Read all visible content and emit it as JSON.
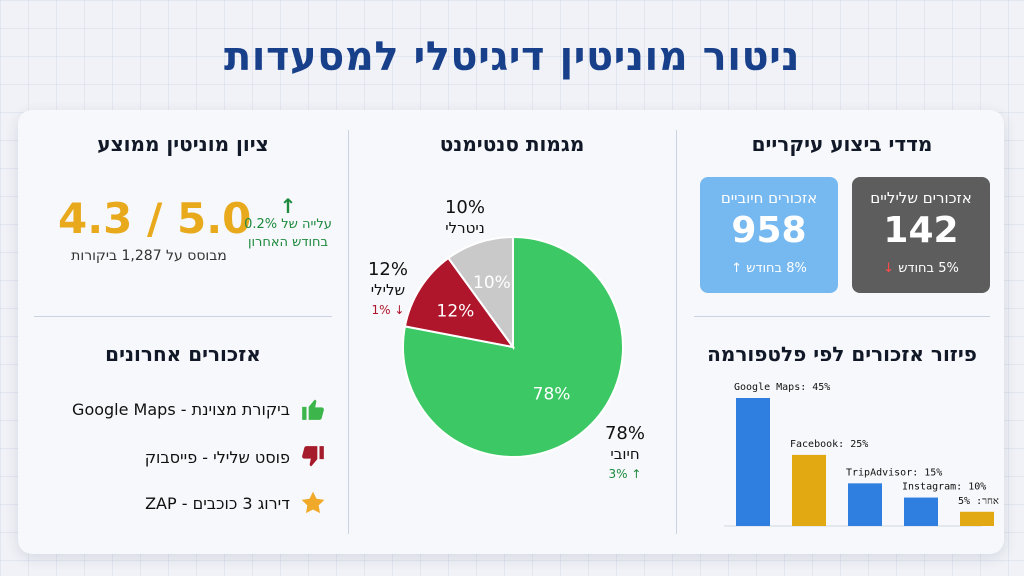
{
  "title": "ניטור מוניטין דיגיטלי למסעדות",
  "kpi": {
    "section_title": "מדדי ביצוע עיקריים",
    "negative": {
      "label": "אזכורים שליליים",
      "value": "142",
      "change": "5% בחודש",
      "color": "#5d5d5d"
    },
    "positive": {
      "label": "אזכורים חיוביים",
      "value": "958",
      "change": "8% בחודש",
      "color": "#76b8f0"
    }
  },
  "sentiment": {
    "section_title": "מגמות סנטימנט",
    "slices": [
      {
        "name": "חיובי",
        "percent": 78,
        "label": "78%",
        "change": "↑ 3%",
        "color": "#3cc864"
      },
      {
        "name": "שלילי",
        "percent": 12,
        "label": "12%",
        "change": "↓ 1%",
        "color": "#b0162b"
      },
      {
        "name": "ניטרלי",
        "percent": 10,
        "label": "10%",
        "change": "",
        "color": "#c9c9c9"
      }
    ]
  },
  "reputation": {
    "section_title": "ציון מוניטין ממוצע",
    "score": "4.3 / 5.0",
    "based_on": "מבוסס על 1,287 ביקורות",
    "trend_arrow": "↑",
    "trend_line1": "עלייה של 0.2%",
    "trend_line2": "בחודש האחרון"
  },
  "mentions": {
    "section_title": "אזכורים אחרונים",
    "items": [
      {
        "text": "ביקורת מצוינת - Google Maps",
        "icon": "thumbs-up-icon"
      },
      {
        "text": "פוסט שלילי - פייסבוק",
        "icon": "thumbs-down-icon"
      },
      {
        "text": "דירוג 3 כוכבים - ZAP",
        "icon": "star-icon"
      }
    ]
  },
  "platforms": {
    "section_title": "פיזור אזכורים לפי פלטפורמה"
  },
  "chart_data": {
    "type": "bar",
    "categories": [
      "Google Maps",
      "Facebook",
      "TripAdvisor",
      "Instagram",
      "אחר"
    ],
    "values": [
      45,
      25,
      15,
      10,
      5
    ],
    "labels": [
      "Google Maps: 45%",
      "Facebook: 25%",
      "TripAdvisor: 15%",
      "Instagram: 10%",
      "אחר: 5%"
    ],
    "colors": [
      "#2f7fe0",
      "#e3a912",
      "#2f7fe0",
      "#2f7fe0",
      "#e3a912"
    ],
    "ylim": [
      0,
      45
    ]
  }
}
